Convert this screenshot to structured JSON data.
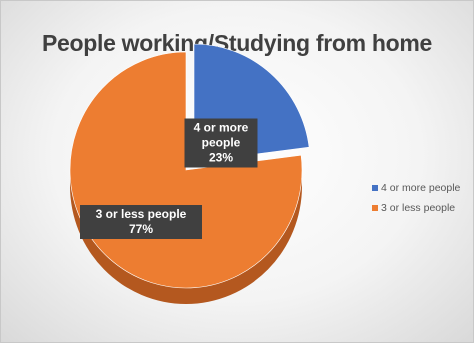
{
  "chart_data": {
    "type": "pie",
    "title": "People working/Studying from home",
    "categories": [
      "4 or more people",
      "3 or less people"
    ],
    "values": [
      23,
      77
    ],
    "unit": "%",
    "data_labels": [
      {
        "lines": [
          "4 or more",
          "people",
          "23%"
        ]
      },
      {
        "lines": [
          "3 or less people",
          "77%"
        ]
      }
    ],
    "colors": [
      "#4472C4",
      "#ED7D31"
    ],
    "side_colors": [
      "#2F528F",
      "#B4581F"
    ],
    "exploded": [
      true,
      false
    ],
    "legend_position": "right",
    "style": "3d"
  }
}
